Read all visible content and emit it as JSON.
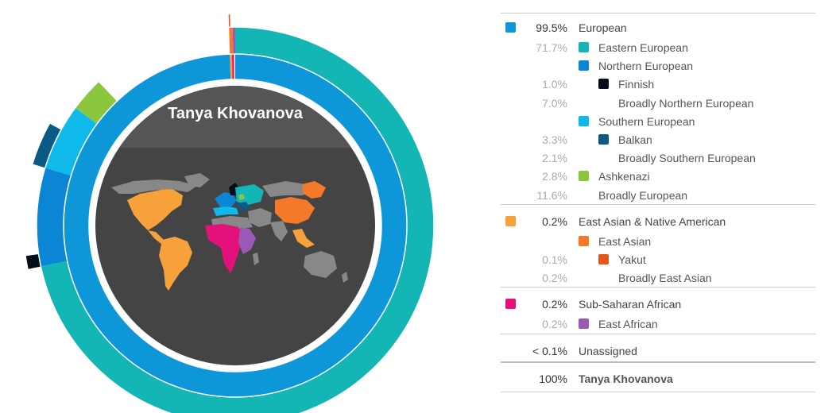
{
  "chart_data": {
    "type": "sunburst",
    "center_label": "Tanya Khovanova",
    "rows": [
      {
        "level": 0,
        "pct": "99.5%",
        "label": "European",
        "color": "#0e97d8"
      },
      {
        "level": 1,
        "pct": "71.7%",
        "label": "Eastern European",
        "color": "#14b5b5"
      },
      {
        "level": 1,
        "pct": "",
        "label": "Northern European",
        "color": "#0b86d4"
      },
      {
        "level": 2,
        "pct": "1.0%",
        "label": "Finnish",
        "color": "#050d1a"
      },
      {
        "level": 2,
        "pct": "7.0%",
        "label": "Broadly Northern European",
        "color": ""
      },
      {
        "level": 1,
        "pct": "",
        "label": "Southern European",
        "color": "#0fb9ea"
      },
      {
        "level": 2,
        "pct": "3.3%",
        "label": "Balkan",
        "color": "#0b5a85"
      },
      {
        "level": 2,
        "pct": "2.1%",
        "label": "Broadly Southern European",
        "color": ""
      },
      {
        "level": 1,
        "pct": "2.8%",
        "label": "Ashkenazi",
        "color": "#8cc63f"
      },
      {
        "level": 1,
        "pct": "11.6%",
        "label": "Broadly European",
        "color": ""
      },
      {
        "level": 0,
        "pct": "0.2%",
        "label": "East Asian & Native American",
        "color": "#f6a13a"
      },
      {
        "level": 1,
        "pct": "",
        "label": "East Asian",
        "color": "#f47a2a"
      },
      {
        "level": 2,
        "pct": "0.1%",
        "label": "Yakut",
        "color": "#e8561d"
      },
      {
        "level": 2,
        "pct": "0.2%",
        "label": "Broadly East Asian",
        "color": ""
      },
      {
        "level": 0,
        "pct": "0.2%",
        "label": "Sub-Saharan African",
        "color": "#e2127a"
      },
      {
        "level": 1,
        "pct": "0.2%",
        "label": "East African",
        "color": "#9b59b6"
      },
      {
        "level": 0,
        "pct": "< 0.1%",
        "label": "Unassigned",
        "color": ""
      },
      {
        "level": 0,
        "pct": "100%",
        "label": "Tanya Khovanova",
        "color": "",
        "total": true
      }
    ],
    "rings": {
      "inner": [
        {
          "name": "European",
          "value": 99.5,
          "color": "#0e97d8"
        },
        {
          "name": "East Asian & Native American",
          "value": 0.2,
          "color": "#f6a13a"
        },
        {
          "name": "Sub-Saharan African",
          "value": 0.2,
          "color": "#e2127a"
        },
        {
          "name": "Unassigned",
          "value": 0.1,
          "color": "#ffffff"
        }
      ],
      "middle": [
        {
          "name": "Eastern European",
          "value": 71.7,
          "color": "#14b5b5"
        },
        {
          "name": "Northern European",
          "value": 8.0,
          "color": "#0b86d4"
        },
        {
          "name": "Southern European",
          "value": 5.4,
          "color": "#0fb9ea"
        },
        {
          "name": "Ashkenazi",
          "value": 2.8,
          "color": "#8cc63f"
        },
        {
          "name": "Broadly European",
          "value": 11.6,
          "color": "none"
        },
        {
          "name": "East Asian",
          "value": 0.3,
          "color": "#f47a2a"
        },
        {
          "name": "East African",
          "value": 0.2,
          "color": "#9b59b6"
        },
        {
          "name": "Unassigned",
          "value": 0.1,
          "color": "none"
        }
      ],
      "outer": [
        {
          "name": "Eastern European",
          "value": 71.7,
          "color": "none"
        },
        {
          "name": "Finnish",
          "value": 1.0,
          "color": "#050d1a"
        },
        {
          "name": "Broadly Northern European",
          "value": 7.0,
          "color": "none"
        },
        {
          "name": "Balkan",
          "value": 3.3,
          "color": "#0b5a85"
        },
        {
          "name": "Broadly Southern European",
          "value": 2.1,
          "color": "none"
        },
        {
          "name": "Ashkenazi",
          "value": 2.8,
          "color": "none"
        },
        {
          "name": "Broadly European",
          "value": 11.6,
          "color": "none"
        },
        {
          "name": "Yakut",
          "value": 0.1,
          "color": "#e8561d"
        },
        {
          "name": "rest",
          "value": 0.4,
          "color": "none"
        }
      ]
    }
  }
}
